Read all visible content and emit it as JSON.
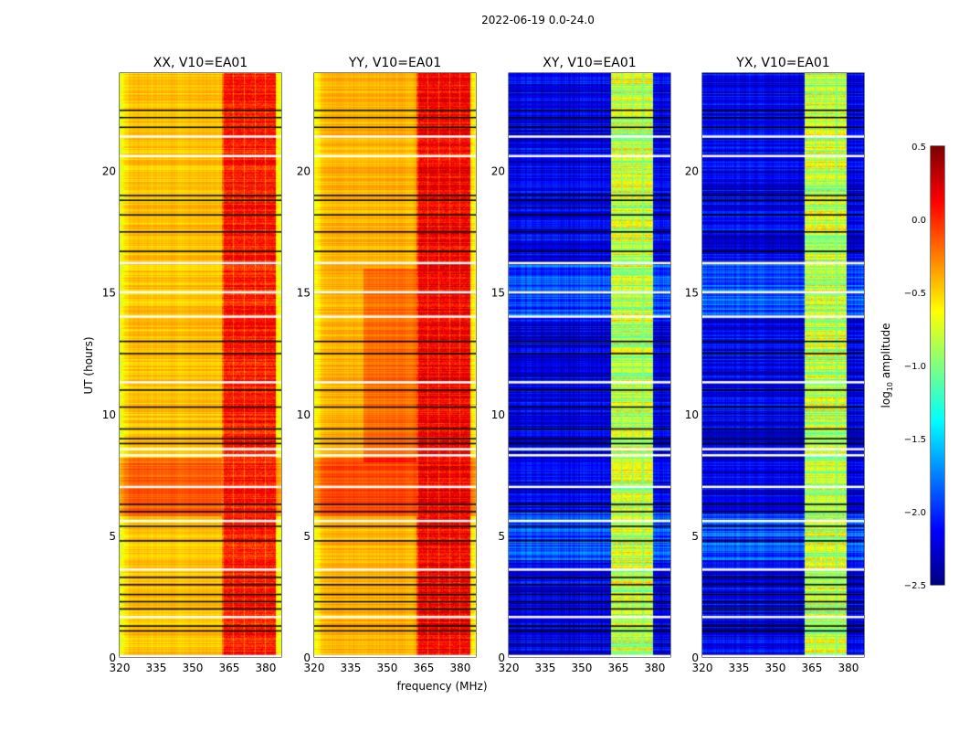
{
  "chart_data": {
    "type": "heatmap",
    "title": "2022-06-19 0.0-24.0",
    "xlabel": "frequency (MHz)",
    "ylabel": "UT (hours)",
    "xlim": [
      320,
      386.4
    ],
    "ylim": [
      0,
      24
    ],
    "xticks": [
      "320",
      "335",
      "350",
      "365",
      "380"
    ],
    "yticks": [
      "0",
      "5",
      "10",
      "15",
      "20"
    ],
    "panels": [
      {
        "title": "XX, V10=EA01",
        "base_level": -0.45,
        "band": [
          362,
          384
        ],
        "band_level": 0.05
      },
      {
        "title": "YY, V10=EA01",
        "base_level": -0.4,
        "band": [
          362,
          384
        ],
        "band_level": 0.15
      },
      {
        "title": "XY, V10=EA01",
        "base_level": -2.2,
        "band": [
          362,
          379
        ],
        "band_level": -0.8
      },
      {
        "title": "YX, V10=EA01",
        "base_level": -2.2,
        "band": [
          362,
          379
        ],
        "band_level": -0.8
      }
    ],
    "flagged_gap_hours": [
      0.05,
      1.65,
      3.6,
      5.6,
      7.0,
      8.3,
      8.55,
      11.3,
      14.0,
      15.0,
      16.2,
      20.6,
      21.4
    ],
    "black_line_hours": [
      1.1,
      1.3,
      2.0,
      2.3,
      2.6,
      3.0,
      3.3,
      4.8,
      5.4,
      6.0,
      6.3,
      8.8,
      9.0,
      9.4,
      10.3,
      11.0,
      12.5,
      13.0,
      16.7,
      17.5,
      18.2,
      18.8,
      19.0,
      21.8,
      22.2,
      22.5
    ],
    "colorbar": {
      "label": "log10 amplitude",
      "label_main": "log",
      "label_sub": "10",
      "label_rest": " amplitude",
      "range": [
        -2.5,
        0.5
      ],
      "ticks": [
        "0.5",
        "0.0",
        "−0.5",
        "−1.0",
        "−1.5",
        "−2.0",
        "−2.5"
      ],
      "colormap": "jet"
    }
  }
}
